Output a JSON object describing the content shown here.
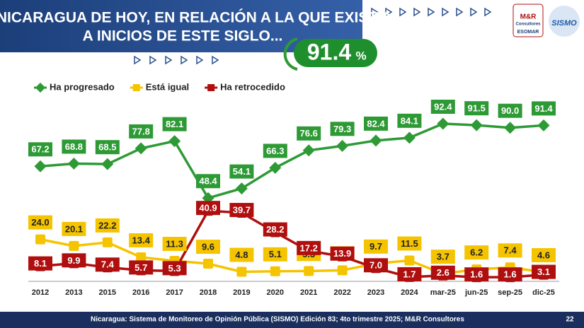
{
  "header": {
    "title_lines": [
      "LA NICARAGUA DE HOY, EN RELACIÓN A LA QUE EXISTÍA",
      "A INICIOS DE ESTE SIGLO..."
    ],
    "highlight_value": 91.4,
    "highlight_unit": "%",
    "logos": [
      "M&R",
      "Consultores",
      "ESOMAR",
      "SISMO"
    ]
  },
  "chart_data": {
    "type": "line",
    "categories": [
      "2012",
      "2013",
      "2015",
      "2016",
      "2017",
      "2018",
      "2019",
      "2020",
      "2021",
      "2022",
      "2023",
      "2024",
      "mar-25",
      "jun-25",
      "sep-25",
      "dic-25"
    ],
    "series": [
      {
        "name": "Ha progresado",
        "color": "#2e9a35",
        "values": [
          67.2,
          68.8,
          68.5,
          77.8,
          82.1,
          48.4,
          54.1,
          66.3,
          76.6,
          79.3,
          82.4,
          84.1,
          92.4,
          91.5,
          90,
          91.4
        ],
        "value_labels": [
          "67.2",
          "68.8",
          "68.5",
          "77.8",
          "82.1",
          "48.4",
          "54.1",
          "66.3",
          "76.6",
          "79.3",
          "82.4",
          "84.1",
          "92.4",
          "91.5",
          "90.0",
          "91.4"
        ]
      },
      {
        "name": "Está igual",
        "color": "#f5c400",
        "values": [
          24,
          20.1,
          22.2,
          13.4,
          11.3,
          9.6,
          4.8,
          5.1,
          5.3,
          5.7,
          9.7,
          11.5,
          3.7,
          6.2,
          7.4,
          4.6
        ],
        "value_labels": [
          "24.0",
          "20.1",
          "22.2",
          "13.4",
          "11.3",
          "9.6",
          "4.8",
          "5.1",
          "5.3",
          "5.7",
          "9.7",
          "11.5",
          "3.7",
          "6.2",
          "7.4",
          "4.6"
        ]
      },
      {
        "name": "Ha retrocedido",
        "color": "#b00f0f",
        "values": [
          8.1,
          9.9,
          7.4,
          5.7,
          5.3,
          40.9,
          39.7,
          28.2,
          17.2,
          13.9,
          7,
          1.7,
          2.6,
          1.6,
          1.6,
          3.1
        ],
        "value_labels": [
          "8.1",
          "9.9",
          "7.4",
          "5.7",
          "5.3",
          "40.9",
          "39.7",
          "28.2",
          "17.2",
          "13.9",
          "7.0",
          "1.7",
          "2.6",
          "1.6",
          "1.6",
          "3.1"
        ]
      }
    ]
  },
  "footer": {
    "source": "Nicaragua: Sistema de Monitoreo de Opinión Pública (SISMO) Edición 83; 4to trimestre 2025; M&R Consultores",
    "page": "22"
  }
}
